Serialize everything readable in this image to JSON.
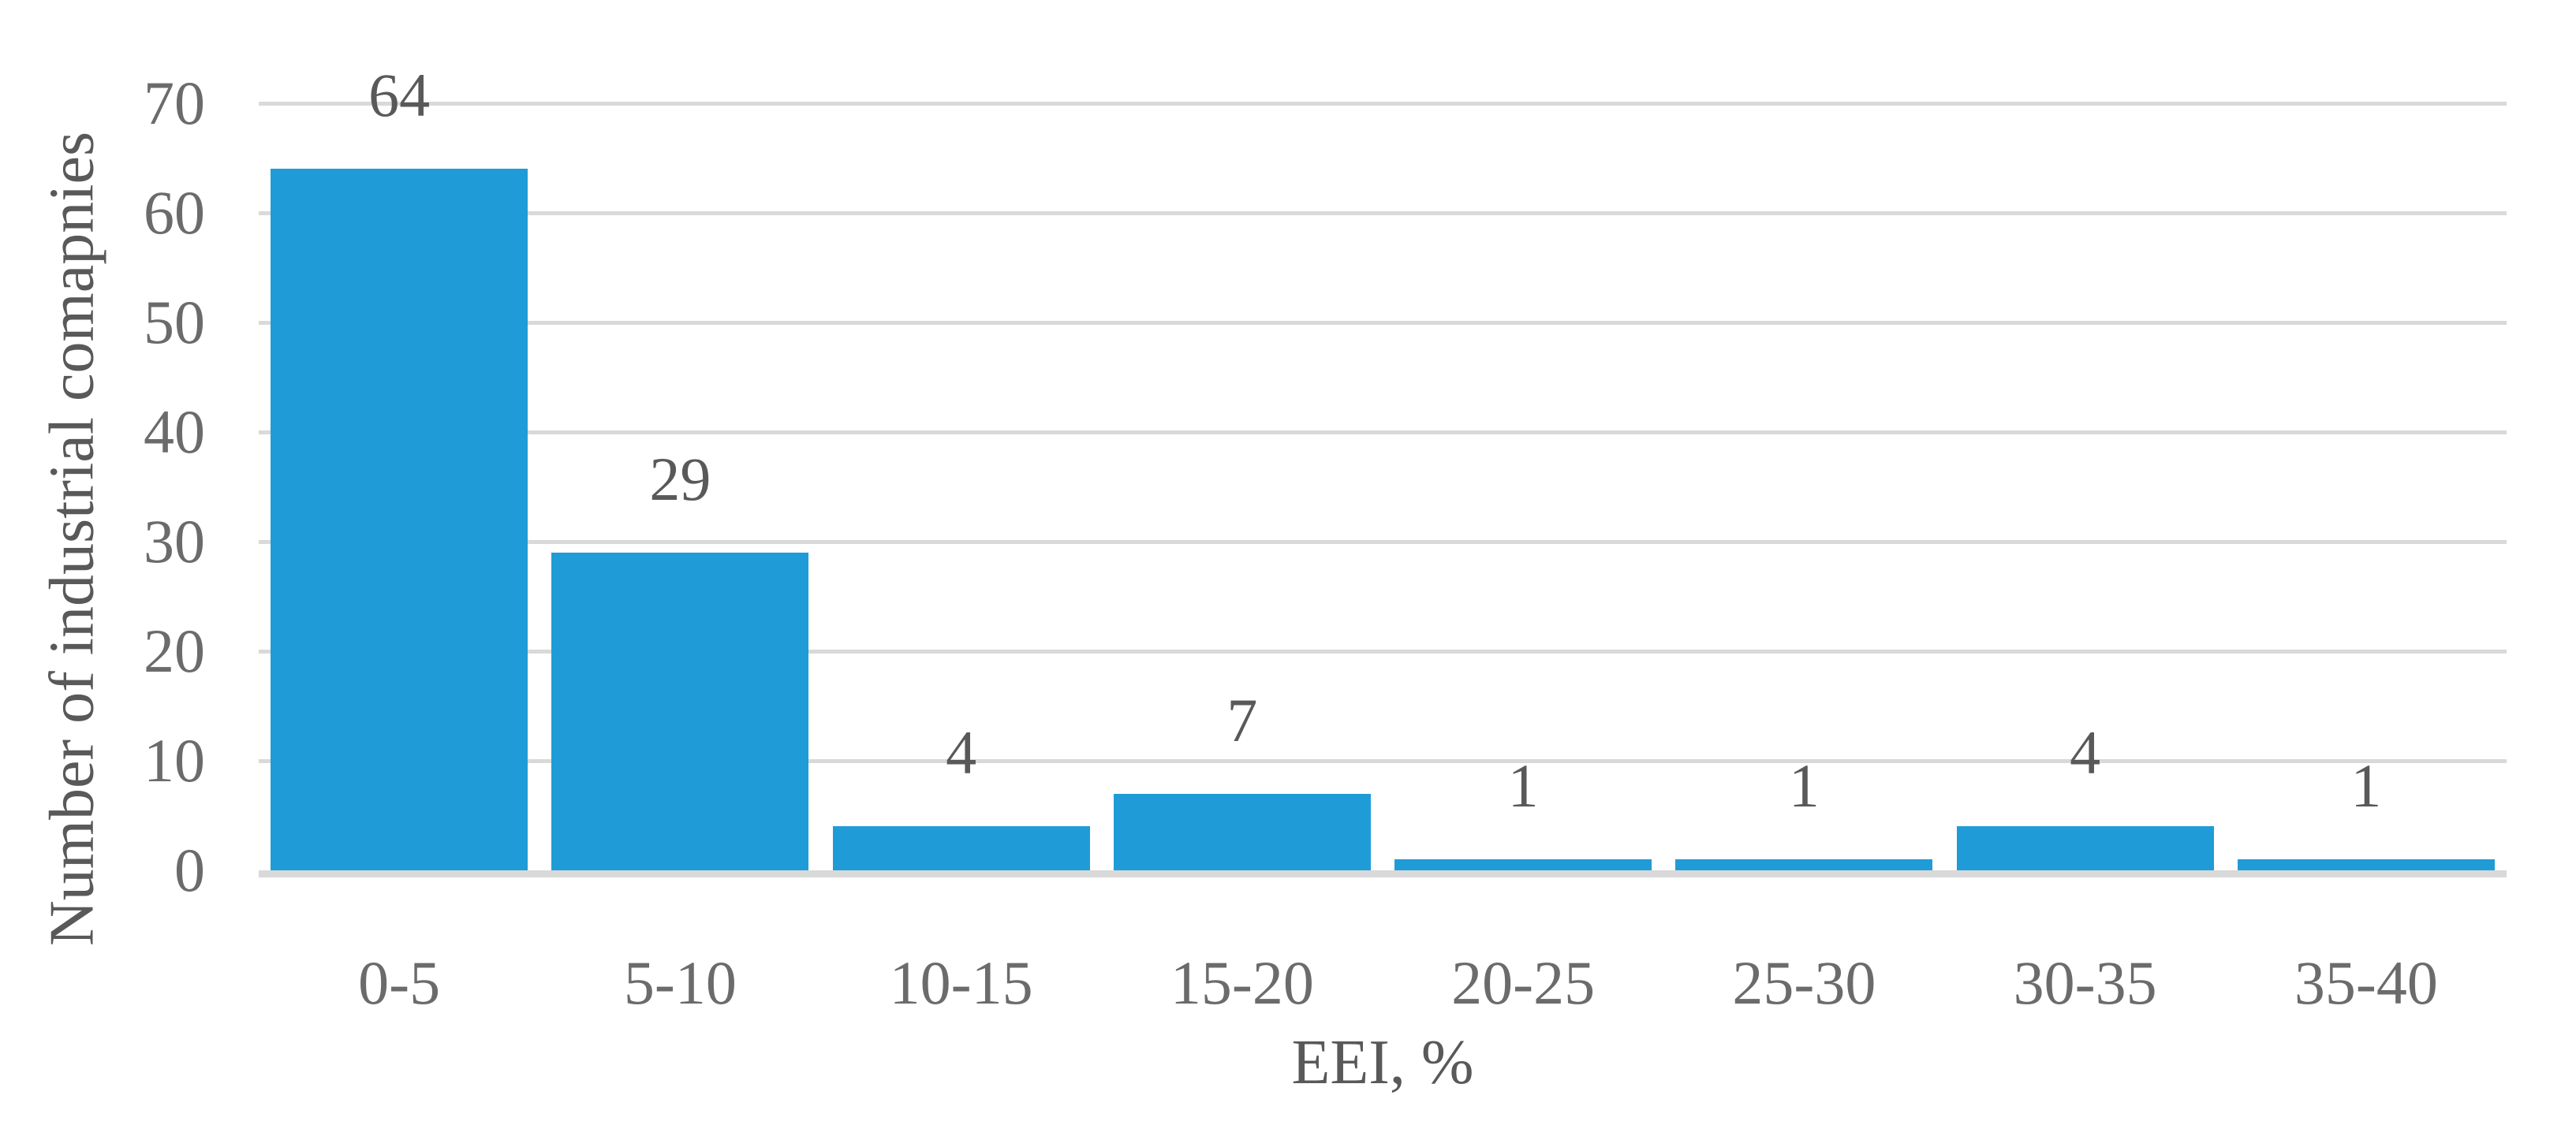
{
  "chart_data": {
    "type": "bar",
    "title": "",
    "categories": [
      "0-5",
      "5-10",
      "10-15",
      "15-20",
      "20-25",
      "25-30",
      "30-35",
      "35-40"
    ],
    "values": [
      64,
      29,
      4,
      7,
      1,
      1,
      4,
      1
    ],
    "xlabel": "EEI, %",
    "ylabel": "Number of industrial comapnies",
    "ylim": [
      0,
      70
    ],
    "yticks": [
      0,
      10,
      20,
      30,
      40,
      50,
      60,
      70
    ],
    "grid": "horizontal",
    "legend_position": "none",
    "data_labels_position": "above-bars",
    "colors": {
      "bar": "#1F9CD7",
      "gridline": "#D9D9D9",
      "axis_line": "#D9D9D9",
      "tick_text": "#6B6B6B",
      "label_text": "#595959"
    }
  }
}
